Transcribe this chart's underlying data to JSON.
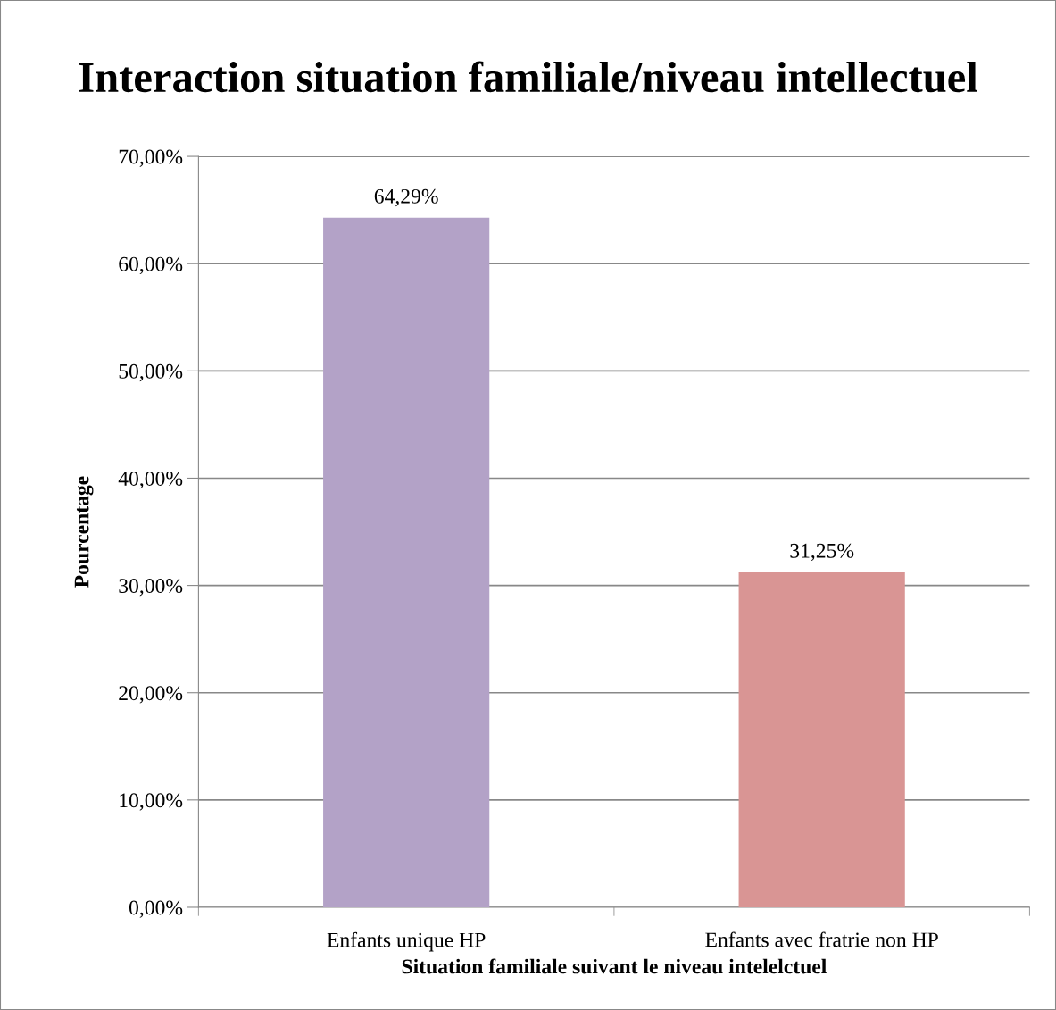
{
  "chart_data": {
    "type": "bar",
    "title": "Interaction situation familiale/niveau intellectuel",
    "xlabel": "Situation familiale suivant le niveau intelelctuel",
    "ylabel": "Pourcentage",
    "categories": [
      "Enfants unique HP",
      "Enfants avec fratrie non HP"
    ],
    "values": [
      64.29,
      31.25
    ],
    "colors": [
      "#b3a2c7",
      "#d99594"
    ],
    "value_labels": [
      "64,29%",
      "31,25%"
    ],
    "ylim": [
      0,
      70
    ],
    "yticks": [
      {
        "value": 0,
        "label": "0,00%"
      },
      {
        "value": 10,
        "label": "10,00%"
      },
      {
        "value": 20,
        "label": "20,00%"
      },
      {
        "value": 30,
        "label": "30,00%"
      },
      {
        "value": 40,
        "label": "40,00%"
      },
      {
        "value": 50,
        "label": "50,00%"
      },
      {
        "value": 60,
        "label": "60,00%"
      },
      {
        "value": 70,
        "label": "70,00%"
      }
    ],
    "grid": "y",
    "legend": false
  }
}
